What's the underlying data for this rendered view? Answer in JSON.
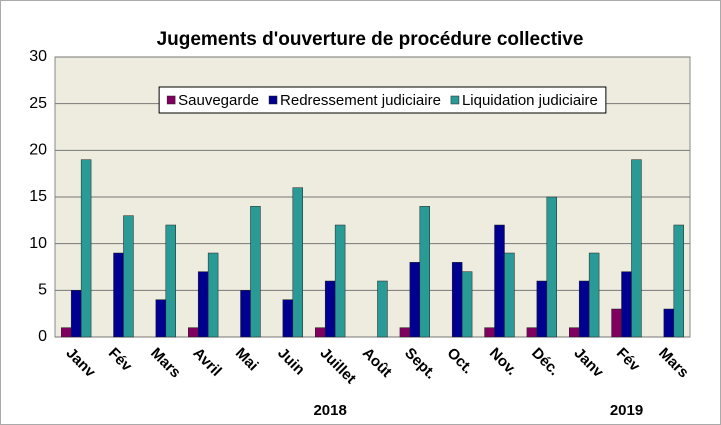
{
  "chart_data": {
    "type": "bar",
    "title": "Jugements d'ouverture de procédure collective",
    "categories": [
      "Janv",
      "Fév",
      "Mars",
      "Avril",
      "Mai",
      "Juin",
      "Juillet",
      "Août",
      "Sept.",
      "Oct.",
      "Nov.",
      "Déc.",
      "Janv",
      "Fév",
      "Mars"
    ],
    "annotations": [
      "2018",
      "2019"
    ],
    "series": [
      {
        "name": "Sauvegarde",
        "color": "#800060",
        "values": [
          1,
          0,
          0,
          1,
          0,
          0,
          1,
          0,
          1,
          0,
          1,
          1,
          1,
          3,
          0
        ]
      },
      {
        "name": "Redressement judiciaire",
        "color": "#000090",
        "values": [
          5,
          9,
          4,
          7,
          5,
          4,
          6,
          0,
          8,
          8,
          12,
          6,
          6,
          7,
          3
        ]
      },
      {
        "name": "Liquidation judiciaire",
        "color": "#2a9a96",
        "values": [
          19,
          13,
          12,
          9,
          14,
          16,
          12,
          6,
          14,
          7,
          9,
          15,
          9,
          19,
          12
        ]
      }
    ],
    "ylim": [
      0,
      30
    ],
    "yticks": [
      0,
      5,
      10,
      15,
      20,
      25,
      30
    ],
    "grid": true,
    "legend": "upper center"
  }
}
